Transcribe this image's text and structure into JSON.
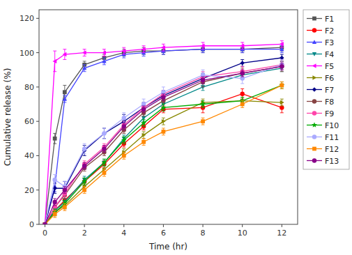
{
  "chart_data": {
    "type": "line",
    "xlabel": "Time (hr)",
    "ylabel": "Cumulative release (%)",
    "x": [
      0,
      0.5,
      1,
      2,
      3,
      4,
      5,
      6,
      8,
      10,
      12
    ],
    "xlim": [
      -0.3,
      12.8
    ],
    "ylim": [
      0,
      125
    ],
    "xticks": [
      0,
      2,
      4,
      6,
      8,
      10,
      12
    ],
    "yticks": [
      0,
      20,
      40,
      60,
      80,
      100,
      120
    ],
    "grid": false,
    "legend": "right",
    "series": [
      {
        "name": "F1",
        "color": "#555555",
        "marker": "square",
        "values": [
          0,
          50,
          77,
          93,
          97,
          100,
          101,
          101,
          102,
          102,
          103
        ],
        "yerr": [
          0,
          3,
          4,
          2,
          2,
          2,
          2,
          2,
          2,
          2,
          2
        ]
      },
      {
        "name": "F2",
        "color": "#ff0000",
        "marker": "circle",
        "values": [
          0,
          8,
          14,
          25,
          35,
          47,
          57,
          67,
          68,
          76,
          68
        ],
        "yerr": [
          0,
          2,
          2,
          2,
          2,
          2,
          2,
          2,
          3,
          3,
          3
        ]
      },
      {
        "name": "F3",
        "color": "#4444ff",
        "marker": "triangle-up",
        "values": [
          0,
          22,
          73,
          91,
          95,
          99,
          100,
          101,
          102,
          102,
          102
        ],
        "yerr": [
          0,
          3,
          2,
          2,
          2,
          2,
          2,
          2,
          2,
          2,
          2
        ]
      },
      {
        "name": "F4",
        "color": "#008888",
        "marker": "triangle-down",
        "values": [
          0,
          8,
          13,
          26,
          36,
          50,
          62,
          70,
          80,
          87,
          91
        ],
        "yerr": [
          0,
          2,
          2,
          2,
          2,
          2,
          2,
          2,
          2,
          2,
          2
        ]
      },
      {
        "name": "F5",
        "color": "#ff00ff",
        "marker": "triangle-left",
        "values": [
          0,
          95,
          99,
          100,
          100,
          101,
          102,
          103,
          104,
          104,
          105
        ],
        "yerr": [
          0,
          6,
          3,
          2,
          2,
          2,
          2,
          2,
          2,
          2,
          2
        ]
      },
      {
        "name": "F6",
        "color": "#888800",
        "marker": "triangle-right",
        "values": [
          0,
          7,
          11,
          22,
          32,
          42,
          52,
          60,
          71,
          72,
          71
        ],
        "yerr": [
          0,
          2,
          2,
          2,
          2,
          2,
          2,
          2,
          2,
          2,
          2
        ]
      },
      {
        "name": "F7",
        "color": "#000088",
        "marker": "diamond",
        "values": [
          0,
          21,
          21,
          43,
          53,
          60,
          68,
          75,
          85,
          94,
          97
        ],
        "yerr": [
          0,
          3,
          4,
          3,
          3,
          4,
          3,
          3,
          3,
          2,
          2
        ]
      },
      {
        "name": "F8",
        "color": "#884444",
        "marker": "circle",
        "values": [
          0,
          10,
          17,
          33,
          42,
          55,
          65,
          72,
          83,
          88,
          92
        ],
        "yerr": [
          0,
          2,
          2,
          2,
          2,
          2,
          2,
          2,
          3,
          3,
          3
        ]
      },
      {
        "name": "F9",
        "color": "#ff44aa",
        "marker": "circle",
        "values": [
          0,
          10,
          18,
          35,
          45,
          58,
          68,
          76,
          86,
          89,
          93
        ],
        "yerr": [
          0,
          2,
          2,
          2,
          2,
          2,
          2,
          2,
          3,
          3,
          3
        ]
      },
      {
        "name": "F10",
        "color": "#00aa00",
        "marker": "star",
        "values": [
          0,
          7,
          12,
          25,
          36,
          49,
          59,
          68,
          70,
          72,
          81
        ],
        "yerr": [
          0,
          2,
          2,
          2,
          2,
          2,
          2,
          2,
          2,
          2,
          2
        ]
      },
      {
        "name": "F11",
        "color": "#aaaaff",
        "marker": "circle",
        "values": [
          0,
          26,
          22,
          44,
          53,
          62,
          70,
          77,
          87,
          85,
          93
        ],
        "yerr": [
          0,
          3,
          3,
          3,
          3,
          3,
          3,
          3,
          3,
          3,
          3
        ]
      },
      {
        "name": "F12",
        "color": "#ff8800",
        "marker": "square",
        "values": [
          0,
          6,
          10,
          20,
          30,
          40,
          48,
          54,
          60,
          70,
          81
        ],
        "yerr": [
          0,
          2,
          2,
          2,
          2,
          2,
          2,
          2,
          2,
          2,
          2
        ]
      },
      {
        "name": "F13",
        "color": "#880088",
        "marker": "circle",
        "values": [
          0,
          13,
          20,
          34,
          44,
          57,
          67,
          74,
          84,
          88,
          92
        ],
        "yerr": [
          0,
          2,
          2,
          2,
          2,
          2,
          2,
          2,
          2,
          2,
          2
        ]
      }
    ]
  }
}
